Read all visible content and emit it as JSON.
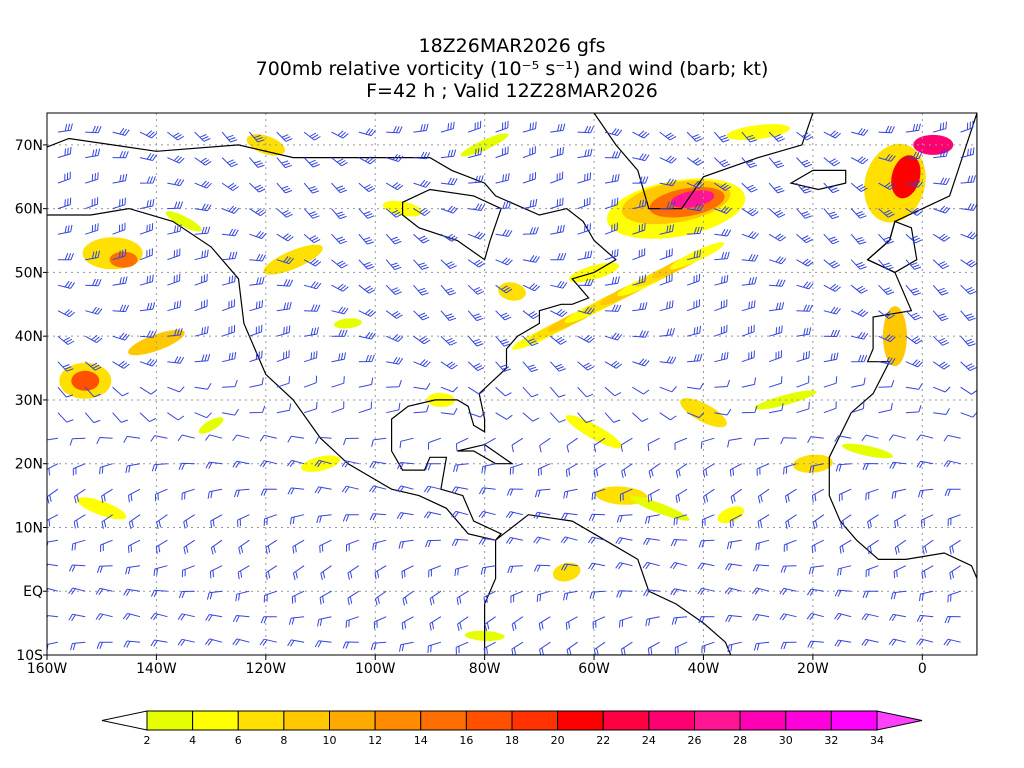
{
  "title": {
    "line1": "18Z26MAR2026 gfs",
    "line2": "700mb relative vorticity (10⁻⁵ s⁻¹) and wind (barb; kt)",
    "line3": "F=42 h ; Valid 12Z28MAR2026"
  },
  "axes": {
    "lat_labels": [
      "70N",
      "60N",
      "50N",
      "40N",
      "30N",
      "20N",
      "10N",
      "EQ",
      "10S"
    ],
    "lon_labels": [
      "160W",
      "140W",
      "120W",
      "100W",
      "80W",
      "60W",
      "40W",
      "20W",
      "0"
    ]
  },
  "colorbar": {
    "labels": [
      "2",
      "4",
      "6",
      "8",
      "10",
      "12",
      "14",
      "16",
      "18",
      "20",
      "22",
      "24",
      "26",
      "28",
      "30",
      "32",
      "34"
    ],
    "colors": [
      "#ffffff",
      "#e6ff00",
      "#ffff00",
      "#ffe000",
      "#ffc800",
      "#ffaa00",
      "#ff8c00",
      "#ff6e00",
      "#ff5000",
      "#ff3200",
      "#ff0000",
      "#ff0040",
      "#ff0070",
      "#ff1493",
      "#ff00b4",
      "#ff00dc",
      "#ff00ff",
      "#ff40ff"
    ]
  },
  "style": {
    "barb_color": "#3344dd",
    "coast_color": "#000000",
    "grid_color": "#999999"
  }
}
